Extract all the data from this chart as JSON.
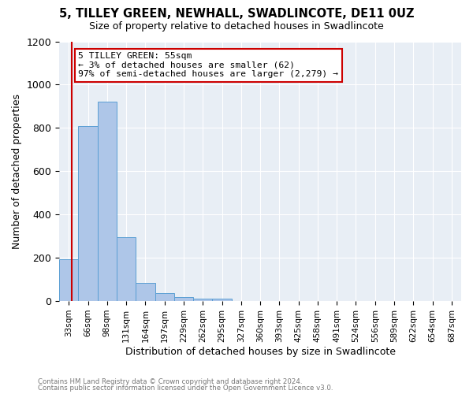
{
  "title": "5, TILLEY GREEN, NEWHALL, SWADLINCOTE, DE11 0UZ",
  "subtitle": "Size of property relative to detached houses in Swadlincote",
  "xlabel": "Distribution of detached houses by size in Swadlincote",
  "ylabel": "Number of detached properties",
  "bin_labels": [
    "33sqm",
    "66sqm",
    "98sqm",
    "131sqm",
    "164sqm",
    "197sqm",
    "229sqm",
    "262sqm",
    "295sqm",
    "327sqm",
    "360sqm",
    "393sqm",
    "425sqm",
    "458sqm",
    "491sqm",
    "524sqm",
    "556sqm",
    "589sqm",
    "622sqm",
    "654sqm",
    "687sqm"
  ],
  "bar_heights": [
    195,
    810,
    920,
    295,
    85,
    38,
    18,
    12,
    10,
    0,
    0,
    0,
    0,
    0,
    0,
    0,
    0,
    0,
    0,
    0,
    0
  ],
  "bar_color": "#aec6e8",
  "bar_edge_color": "#5a9fd4",
  "property_bin_index": 1,
  "property_line_label": "5 TILLEY GREEN: 55sqm",
  "annotation_line1": "← 3% of detached houses are smaller (62)",
  "annotation_line2": "97% of semi-detached houses are larger (2,279) →",
  "annotation_box_color": "#ffffff",
  "annotation_box_edge_color": "#cc0000",
  "vline_color": "#cc0000",
  "ylim": [
    0,
    1200
  ],
  "yticks": [
    0,
    200,
    400,
    600,
    800,
    1000,
    1200
  ],
  "footnote1": "Contains HM Land Registry data © Crown copyright and database right 2024.",
  "footnote2": "Contains public sector information licensed under the Open Government Licence v3.0.",
  "bg_color": "#e8eef5"
}
